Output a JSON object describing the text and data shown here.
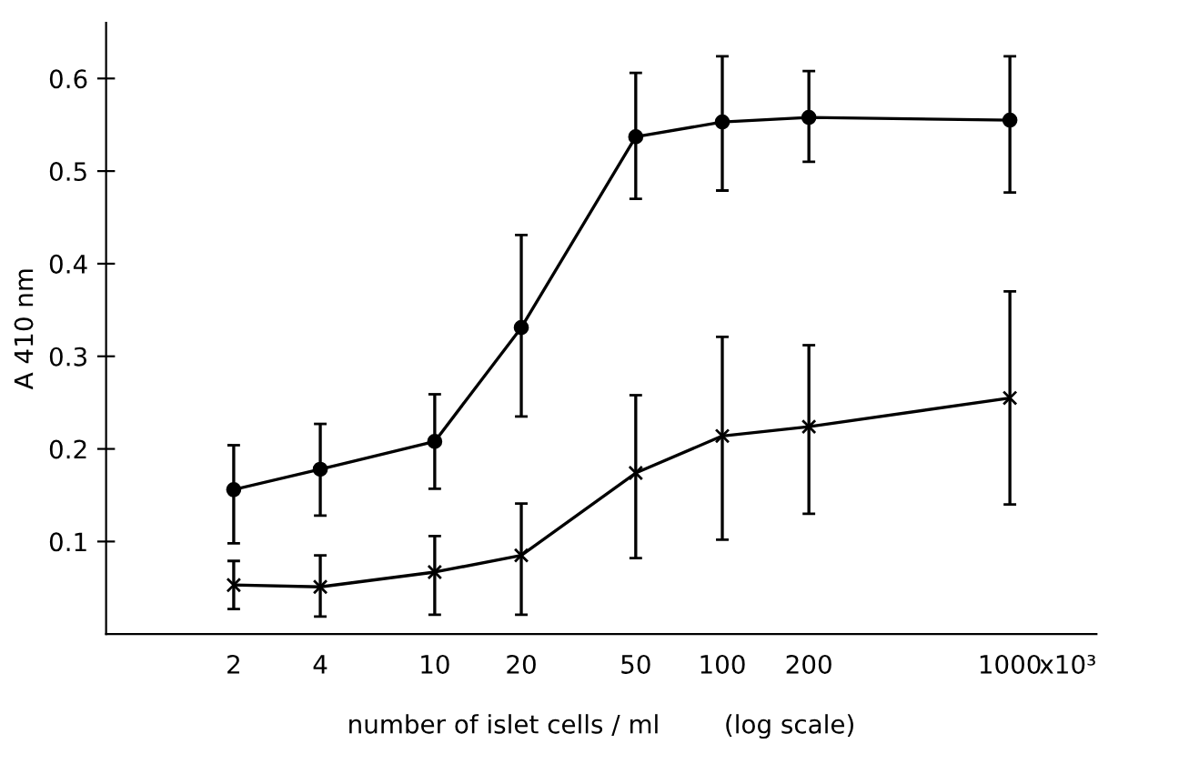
{
  "chart_data": {
    "type": "line",
    "xlabel": "number of islet cells / ml        (log scale)",
    "ylabel": "A 410 nm",
    "annotations": [
      "x10³"
    ],
    "x": [
      2,
      4,
      10,
      20,
      50,
      100,
      200,
      1000
    ],
    "log": "x",
    "xlim": [
      0.72,
      2000
    ],
    "xticks": [
      2,
      4,
      10,
      20,
      50,
      100,
      200,
      1000
    ],
    "ylim": [
      0,
      0.66
    ],
    "yticks": [
      0.1,
      0.2,
      0.3,
      0.4,
      0.5,
      0.6
    ],
    "grid": false,
    "legend": false,
    "line_style": "solid",
    "series": [
      {
        "color": "#000000",
        "marker": "circle",
        "values": [
          0.156,
          0.178,
          0.208,
          0.331,
          0.537,
          0.553,
          0.558,
          0.555
        ],
        "errors": [
          [
            0.098,
            0.204
          ],
          [
            0.128,
            0.227
          ],
          [
            0.157,
            0.259
          ],
          [
            0.235,
            0.431
          ],
          [
            0.47,
            0.606
          ],
          [
            0.479,
            0.624
          ],
          [
            0.51,
            0.608
          ],
          [
            0.477,
            0.624
          ]
        ]
      },
      {
        "color": "#000000",
        "marker": "cross",
        "values": [
          0.053,
          0.051,
          0.067,
          0.085,
          0.174,
          0.214,
          0.224,
          0.255
        ],
        "errors": [
          [
            0.027,
            0.079
          ],
          [
            0.019,
            0.085
          ],
          [
            0.021,
            0.106
          ],
          [
            0.021,
            0.141
          ],
          [
            0.082,
            0.258
          ],
          [
            0.102,
            0.321
          ],
          [
            0.13,
            0.312
          ],
          [
            0.14,
            0.37
          ]
        ]
      }
    ]
  }
}
